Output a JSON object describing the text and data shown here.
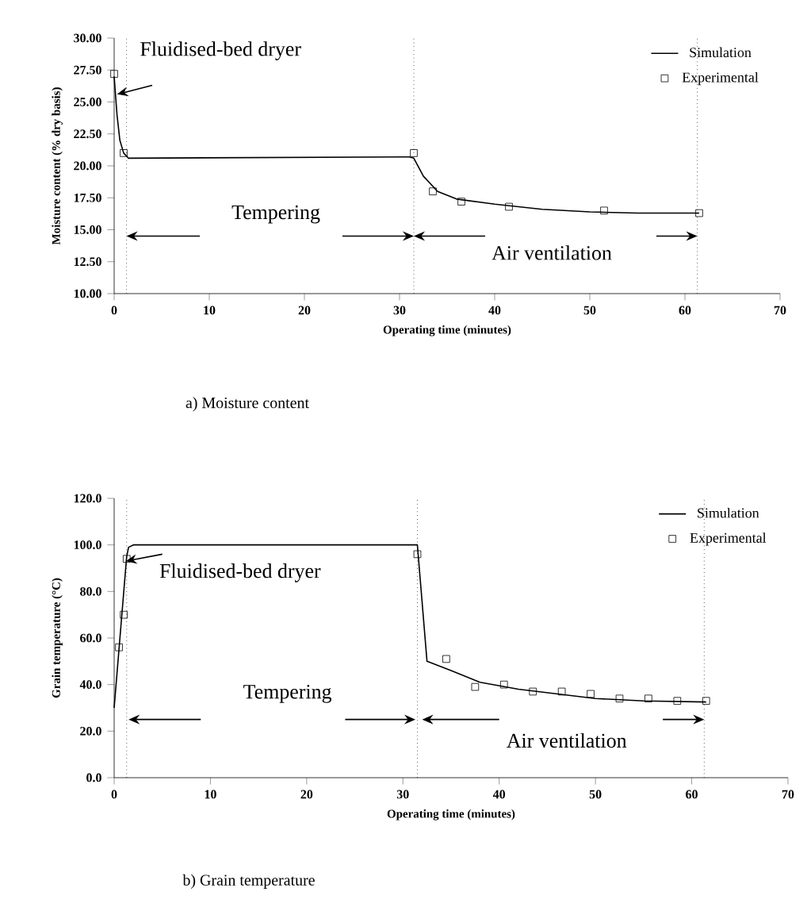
{
  "chart_data": [
    {
      "type": "line",
      "title": "a) Moisture content",
      "xlabel": "Operating time (minutes)",
      "ylabel": "Moisture content (% dry basis)",
      "xlim": [
        0,
        70
      ],
      "xticks": [
        0,
        10,
        20,
        30,
        40,
        50,
        60,
        70
      ],
      "ylim": [
        10,
        30
      ],
      "yticks": [
        {
          "value": 10,
          "label": "10.00"
        },
        {
          "value": 12.5,
          "label": "12.50"
        },
        {
          "value": 15,
          "label": "15.00"
        },
        {
          "value": 17.5,
          "label": "17.50"
        },
        {
          "value": 20,
          "label": "20.00"
        },
        {
          "value": 22.5,
          "label": "22.50"
        },
        {
          "value": 25,
          "label": "25.00"
        },
        {
          "value": 27.5,
          "label": "27.50"
        },
        {
          "value": 30,
          "label": "30.00"
        }
      ],
      "legend": "top right",
      "grid": false,
      "series": [
        {
          "name": "Simulation",
          "type": "line",
          "color": "#000000",
          "marker": "none",
          "line_style": "solid",
          "x": [
            0,
            0.3,
            0.6,
            1,
            1.5,
            31,
            31.5,
            32.5,
            34,
            36,
            40,
            45,
            50,
            55,
            61.5
          ],
          "values": [
            27,
            24,
            22,
            21,
            20.6,
            20.7,
            20.6,
            19.2,
            18,
            17.4,
            17,
            16.6,
            16.4,
            16.3,
            16.3
          ]
        },
        {
          "name": "Experimental",
          "type": "scatter",
          "color": "#000000",
          "marker": "square",
          "x": [
            0,
            1,
            31.5,
            33.5,
            36.5,
            41.5,
            51.5,
            61.5
          ],
          "values": [
            27.2,
            21,
            21,
            18,
            17.2,
            16.8,
            16.5,
            16.3
          ]
        }
      ],
      "ref_lines": [
        {
          "axis": "x",
          "value": 1.3,
          "line_style": "dotted",
          "color": "#000000"
        },
        {
          "axis": "x",
          "value": 31.5,
          "line_style": "dotted",
          "color": "#000000"
        },
        {
          "axis": "x",
          "value": 61.3,
          "line_style": "dotted",
          "color": "#000000"
        }
      ],
      "annotations": [
        {
          "text": "Fluidised-bed dryer",
          "x": 0.3,
          "y": 25.6
        },
        {
          "text": "Tempering",
          "x": 31.5,
          "y": 14.5
        },
        {
          "text": "Air ventilation",
          "x": 31.5,
          "y": 14.5
        }
      ]
    },
    {
      "type": "line",
      "title": "b) Grain temperature",
      "xlabel": "Operating time (minutes)",
      "ylabel": "Grain temperature (°C)",
      "xlim": [
        0,
        70
      ],
      "xticks": [
        0,
        10,
        20,
        30,
        40,
        50,
        60,
        70
      ],
      "ylim": [
        0,
        120
      ],
      "yticks": [
        {
          "value": 0,
          "label": "0.0"
        },
        {
          "value": 20,
          "label": "20.0"
        },
        {
          "value": 40,
          "label": "40.0"
        },
        {
          "value": 60,
          "label": "60.0"
        },
        {
          "value": 80,
          "label": "80.0"
        },
        {
          "value": 100,
          "label": "100.0"
        },
        {
          "value": 120,
          "label": "120.0"
        }
      ],
      "legend": "top right",
      "grid": false,
      "series": [
        {
          "name": "Simulation",
          "type": "line",
          "color": "#000000",
          "marker": "none",
          "line_style": "solid",
          "x": [
            0,
            0.5,
            1,
            1.3,
            1.5,
            2,
            31.5,
            32,
            32.5,
            35,
            38,
            42,
            46,
            50,
            55,
            61.5
          ],
          "values": [
            30,
            55,
            80,
            95,
            99,
            100,
            100,
            75,
            50,
            46,
            41,
            38,
            36,
            34,
            33,
            32.5
          ]
        },
        {
          "name": "Experimental",
          "type": "scatter",
          "color": "#000000",
          "marker": "square",
          "x": [
            0.5,
            1,
            1.3,
            31.5,
            34.5,
            37.5,
            40.5,
            43.5,
            46.5,
            49.5,
            52.5,
            55.5,
            58.5,
            61.5
          ],
          "values": [
            56,
            70,
            94,
            96,
            51,
            39,
            40,
            37,
            37,
            36,
            34,
            34,
            33,
            33
          ]
        }
      ],
      "ref_lines": [
        {
          "axis": "x",
          "value": 1.3,
          "line_style": "dotted",
          "color": "#000000"
        },
        {
          "axis": "x",
          "value": 31.5,
          "line_style": "dotted",
          "color": "#000000"
        },
        {
          "axis": "x",
          "value": 61.3,
          "line_style": "dotted",
          "color": "#000000"
        }
      ],
      "annotations": [
        {
          "text": "Fluidised-bed dryer",
          "x": 1.2,
          "y": 93
        },
        {
          "text": "Tempering",
          "x": 31.3,
          "y": 25
        },
        {
          "text": "Air ventilation",
          "x": 32,
          "y": 25
        }
      ]
    }
  ]
}
